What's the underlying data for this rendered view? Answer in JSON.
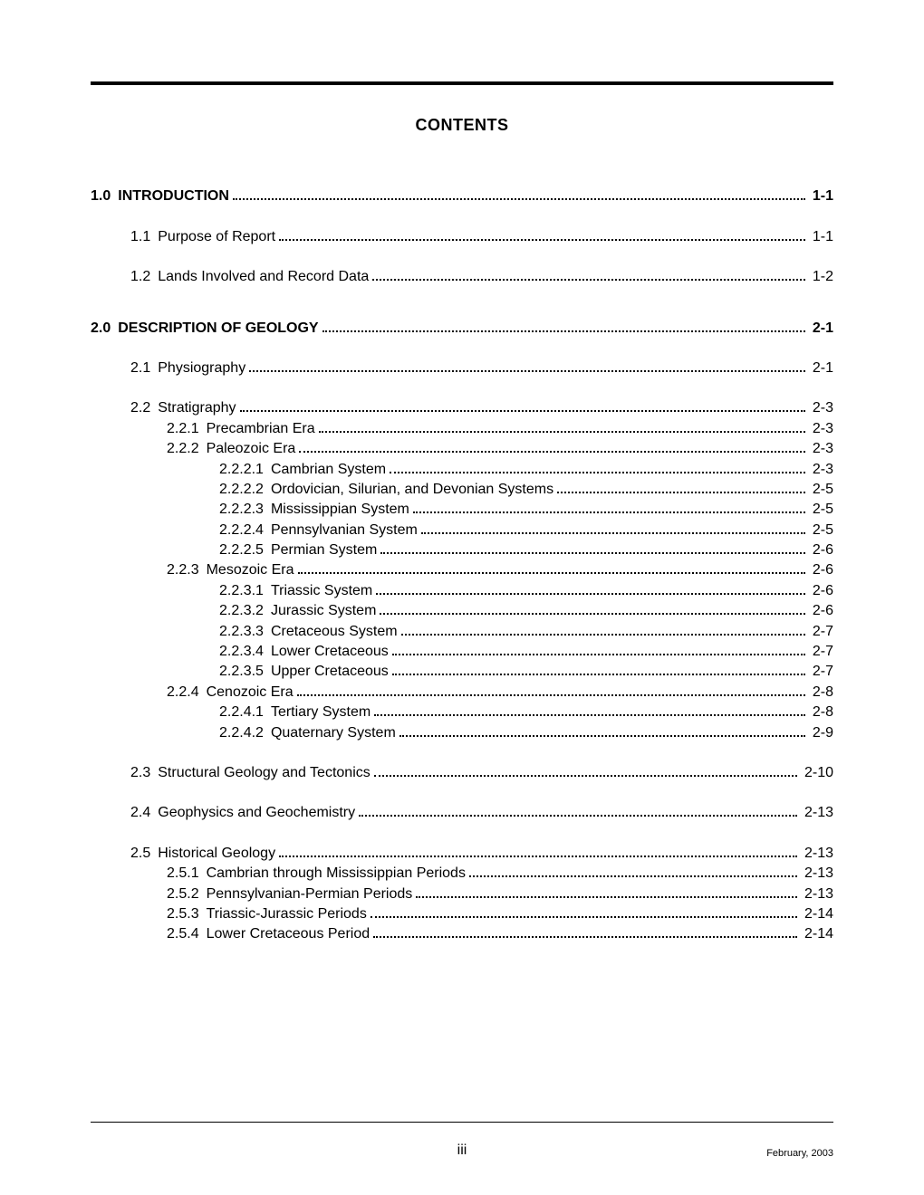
{
  "title": "CONTENTS",
  "page_number": "iii",
  "footer_date": "February, 2003",
  "entries": [
    {
      "level": 0,
      "bold": true,
      "num": "1.0",
      "label": "INTRODUCTION",
      "page": "1-1",
      "gap_before": "none"
    },
    {
      "level": 1,
      "bold": false,
      "num": "1.1",
      "label": "Purpose of Report",
      "page": "1-1",
      "gap_before": "md"
    },
    {
      "level": 1,
      "bold": false,
      "num": "1.2",
      "label": "Lands Involved and Record Data",
      "page": "1-2",
      "gap_before": "md"
    },
    {
      "level": 0,
      "bold": true,
      "num": "2.0",
      "label": "DESCRIPTION OF GEOLOGY",
      "page": "2-1",
      "gap_before": "lg"
    },
    {
      "level": 1,
      "bold": false,
      "num": "2.1",
      "label": "Physiography",
      "page": "2-1",
      "gap_before": "md"
    },
    {
      "level": 1,
      "bold": false,
      "num": "2.2",
      "label": "Stratigraphy",
      "page": "2-3",
      "gap_before": "md"
    },
    {
      "level": 2,
      "bold": false,
      "num": "2.2.1",
      "label": "Precambrian Era",
      "page": "2-3",
      "gap_before": "sm"
    },
    {
      "level": 2,
      "bold": false,
      "num": "2.2.2",
      "label": "Paleozoic Era",
      "page": "2-3",
      "gap_before": "sm"
    },
    {
      "level": 3,
      "bold": false,
      "num": "2.2.2.1",
      "label": "Cambrian System",
      "page": "2-3",
      "gap_before": "sm"
    },
    {
      "level": 3,
      "bold": false,
      "num": "2.2.2.2",
      "label": "Ordovician, Silurian, and Devonian Systems",
      "page": "2-5",
      "gap_before": "sm"
    },
    {
      "level": 3,
      "bold": false,
      "num": "2.2.2.3",
      "label": "Mississippian System",
      "page": "2-5",
      "gap_before": "sm"
    },
    {
      "level": 3,
      "bold": false,
      "num": "2.2.2.4",
      "label": "Pennsylvanian System",
      "page": "2-5",
      "gap_before": "sm"
    },
    {
      "level": 3,
      "bold": false,
      "num": "2.2.2.5",
      "label": "Permian System",
      "page": "2-6",
      "gap_before": "sm"
    },
    {
      "level": 2,
      "bold": false,
      "num": "2.2.3",
      "label": "Mesozoic Era",
      "page": "2-6",
      "gap_before": "sm"
    },
    {
      "level": 3,
      "bold": false,
      "num": "2.2.3.1",
      "label": "Triassic System",
      "page": "2-6",
      "gap_before": "sm"
    },
    {
      "level": 3,
      "bold": false,
      "num": "2.2.3.2",
      "label": "Jurassic System",
      "page": "2-6",
      "gap_before": "sm"
    },
    {
      "level": 3,
      "bold": false,
      "num": "2.2.3.3",
      "label": "Cretaceous System",
      "page": "2-7",
      "gap_before": "sm"
    },
    {
      "level": 3,
      "bold": false,
      "num": "2.2.3.4",
      "label": "Lower Cretaceous",
      "page": "2-7",
      "gap_before": "sm"
    },
    {
      "level": 3,
      "bold": false,
      "num": "2.2.3.5",
      "label": "Upper Cretaceous",
      "page": "2-7",
      "gap_before": "sm"
    },
    {
      "level": 2,
      "bold": false,
      "num": "2.2.4",
      "label": "Cenozoic Era",
      "page": "2-8",
      "gap_before": "sm"
    },
    {
      "level": 3,
      "bold": false,
      "num": "2.2.4.1",
      "label": "Tertiary System",
      "page": "2-8",
      "gap_before": "sm"
    },
    {
      "level": 3,
      "bold": false,
      "num": "2.2.4.2",
      "label": "Quaternary System",
      "page": "2-9",
      "gap_before": "sm"
    },
    {
      "level": 1,
      "bold": false,
      "num": "2.3",
      "label": "Structural Geology and Tectonics",
      "page": "2-10",
      "gap_before": "md"
    },
    {
      "level": 1,
      "bold": false,
      "num": "2.4",
      "label": "Geophysics and Geochemistry",
      "page": "2-13",
      "gap_before": "md"
    },
    {
      "level": 1,
      "bold": false,
      "num": "2.5",
      "label": "Historical Geology",
      "page": "2-13",
      "gap_before": "md"
    },
    {
      "level": 2,
      "bold": false,
      "num": "2.5.1",
      "label": "Cambrian through Mississippian Periods",
      "page": "2-13",
      "gap_before": "sm"
    },
    {
      "level": 2,
      "bold": false,
      "num": "2.5.2",
      "label": "Pennsylvanian-Permian Periods",
      "page": "2-13",
      "gap_before": "sm"
    },
    {
      "level": 2,
      "bold": false,
      "num": "2.5.3",
      "label": "Triassic-Jurassic Periods",
      "page": "2-14",
      "gap_before": "sm"
    },
    {
      "level": 2,
      "bold": false,
      "num": "2.5.4",
      "label": "Lower Cretaceous Period",
      "page": "2-14",
      "gap_before": "sm"
    }
  ]
}
